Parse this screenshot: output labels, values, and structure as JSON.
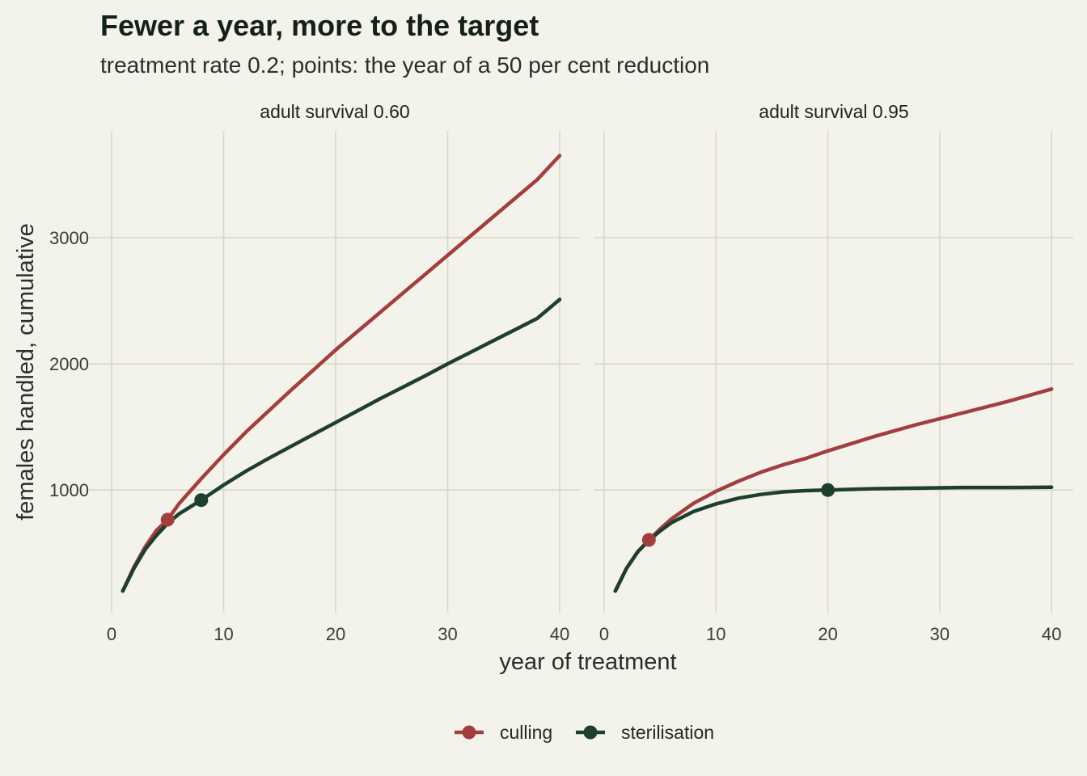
{
  "chart_data": {
    "type": "line",
    "title": "Fewer a year, more to the target",
    "subtitle": "treatment rate 0.2; points: the year of a 50 per cent reduction",
    "xlabel": "year of treatment",
    "ylabel": "females handled, cumulative",
    "xlim": [
      0,
      40
    ],
    "ylim": [
      0,
      3800
    ],
    "x_ticks": [
      0,
      10,
      20,
      30,
      40
    ],
    "y_ticks": [
      1000,
      2000,
      3000
    ],
    "grid": true,
    "legend_position": "bottom",
    "legend": [
      {
        "label": "culling",
        "color": "#A23E3F"
      },
      {
        "label": "sterilisation",
        "color": "#1F3F2D"
      }
    ],
    "panels": [
      {
        "label": "adult survival 0.60",
        "series": [
          {
            "name": "culling",
            "color": "#A23E3F",
            "x": [
              1,
              2,
              3,
              4,
              5,
              6,
              8,
              10,
              12,
              14,
              16,
              18,
              20,
              22,
              24,
              26,
              28,
              30,
              32,
              34,
              36,
              38,
              40
            ],
            "y": [
              200,
              390,
              550,
              680,
              765,
              890,
              1090,
              1280,
              1460,
              1625,
              1790,
              1950,
              2110,
              2260,
              2410,
              2560,
              2710,
              2860,
              3010,
              3160,
              3310,
              3460,
              3650
            ],
            "marker": {
              "x": 5,
              "y": 765
            }
          },
          {
            "name": "sterilisation",
            "color": "#1F3F2D",
            "x": [
              1,
              2,
              3,
              4,
              5,
              6,
              8,
              10,
              12,
              14,
              16,
              18,
              20,
              22,
              24,
              26,
              28,
              30,
              32,
              34,
              36,
              38,
              40
            ],
            "y": [
              200,
              380,
              530,
              640,
              735,
              810,
              920,
              1040,
              1150,
              1250,
              1345,
              1440,
              1535,
              1630,
              1725,
              1815,
              1905,
              2000,
              2090,
              2180,
              2270,
              2360,
              2510
            ],
            "marker": {
              "x": 8,
              "y": 920
            }
          }
        ]
      },
      {
        "label": "adult survival 0.95",
        "series": [
          {
            "name": "culling",
            "color": "#A23E3F",
            "x": [
              1,
              2,
              3,
              4,
              5,
              6,
              8,
              10,
              12,
              14,
              16,
              18,
              20,
              24,
              28,
              32,
              36,
              40
            ],
            "y": [
              200,
              380,
              510,
              605,
              690,
              770,
              895,
              990,
              1070,
              1140,
              1200,
              1250,
              1310,
              1420,
              1520,
              1610,
              1700,
              1800
            ],
            "marker": {
              "x": 4,
              "y": 605
            }
          },
          {
            "name": "sterilisation",
            "color": "#1F3F2D",
            "x": [
              1,
              2,
              3,
              4,
              5,
              6,
              8,
              10,
              12,
              14,
              16,
              18,
              20,
              24,
              28,
              32,
              36,
              40
            ],
            "y": [
              200,
              380,
              510,
              600,
              675,
              740,
              830,
              890,
              935,
              965,
              985,
              995,
              1000,
              1010,
              1015,
              1020,
              1020,
              1022
            ],
            "marker": {
              "x": 20,
              "y": 1000
            }
          }
        ]
      }
    ]
  }
}
